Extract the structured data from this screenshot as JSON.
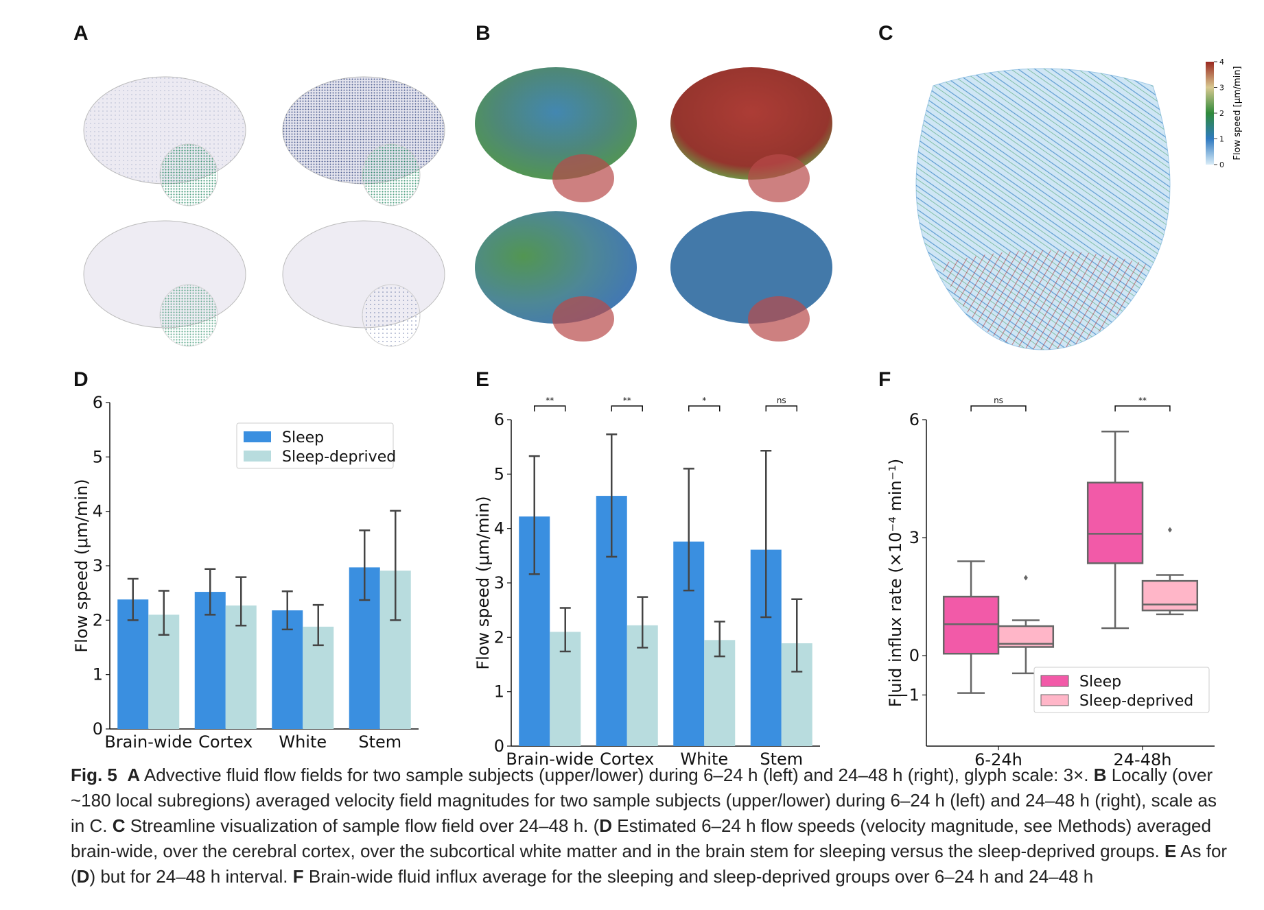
{
  "panels": {
    "A": "A",
    "B": "B",
    "C": "C",
    "D": "D",
    "E": "E",
    "F": "F"
  },
  "colorbar": {
    "label": "Flow speed  [μm/min]",
    "ticks": [
      "0",
      "1",
      "2",
      "3",
      "4"
    ]
  },
  "legend_bar": {
    "sleep": "Sleep",
    "deprived": "Sleep-deprived"
  },
  "colors": {
    "sleep": "#3a8fe0",
    "deprived": "#b8dcde",
    "box_sleep": "#f25aa8",
    "box_deprived": "#ffb6c8",
    "error": "#444444"
  },
  "chart_data": [
    {
      "id": "D",
      "type": "bar",
      "categories": [
        "Brain-wide",
        "Cortex",
        "White",
        "Stem"
      ],
      "ylabel": "Flow speed (μm/min)",
      "ylim": [
        0,
        6
      ],
      "yticks": [
        0,
        1,
        2,
        3,
        4,
        5,
        6
      ],
      "series": [
        {
          "name": "Sleep",
          "values": [
            2.38,
            2.52,
            2.18,
            2.97
          ],
          "err_low": [
            2.0,
            2.1,
            1.83,
            2.37
          ],
          "err_high": [
            2.76,
            2.94,
            2.53,
            3.65
          ]
        },
        {
          "name": "Sleep-deprived",
          "values": [
            2.1,
            2.27,
            1.88,
            2.91
          ],
          "err_low": [
            1.73,
            1.9,
            1.54,
            2.0
          ],
          "err_high": [
            2.54,
            2.79,
            2.28,
            4.01
          ]
        }
      ],
      "legend": "top-right"
    },
    {
      "id": "E",
      "type": "bar",
      "categories": [
        "Brain-wide",
        "Cortex",
        "White",
        "Stem"
      ],
      "ylabel": "Flow speed (μm/min)",
      "ylim": [
        0,
        6
      ],
      "yticks": [
        0,
        1,
        2,
        3,
        4,
        5,
        6
      ],
      "series": [
        {
          "name": "Sleep",
          "values": [
            4.22,
            4.6,
            3.76,
            3.61
          ],
          "err_low": [
            3.16,
            3.48,
            2.86,
            2.37
          ],
          "err_high": [
            5.33,
            5.73,
            5.1,
            5.43
          ]
        },
        {
          "name": "Sleep-deprived",
          "values": [
            2.1,
            2.22,
            1.95,
            1.89
          ],
          "err_low": [
            1.74,
            1.81,
            1.65,
            1.37
          ],
          "err_high": [
            2.54,
            2.74,
            2.29,
            2.7
          ]
        }
      ],
      "significance": [
        "**",
        "**",
        "*",
        "ns"
      ]
    },
    {
      "id": "F",
      "type": "box",
      "categories": [
        "6-24h",
        "24-48h"
      ],
      "ylabel": "Fluid influx rate (×10⁻⁴ min⁻¹)",
      "ylim": [
        -2.3,
        6
      ],
      "yticks": [
        -1,
        0,
        3,
        6
      ],
      "ytick_labels": [
        "−1",
        "0",
        "3",
        "6"
      ],
      "series": [
        {
          "name": "Sleep",
          "boxes": [
            {
              "min": -0.95,
              "q1": 0.05,
              "median": 0.8,
              "q3": 1.5,
              "max": 2.4,
              "outliers": []
            },
            {
              "min": 0.7,
              "q1": 2.35,
              "median": 3.1,
              "q3": 4.4,
              "max": 5.7,
              "outliers": []
            }
          ]
        },
        {
          "name": "Sleep-deprived",
          "boxes": [
            {
              "min": -0.45,
              "q1": 0.22,
              "median": 0.3,
              "q3": 0.75,
              "max": 0.9,
              "outliers": [
                1.98
              ]
            },
            {
              "min": 1.05,
              "q1": 1.15,
              "median": 1.3,
              "q3": 1.9,
              "max": 2.05,
              "outliers": [
                3.2
              ]
            }
          ]
        }
      ],
      "significance": [
        "ns",
        "**"
      ],
      "legend": "bottom-right"
    }
  ],
  "caption": {
    "fig": "Fig. 5",
    "parts": [
      {
        "b": "A",
        "t": " Advective fluid flow fields for two sample subjects (upper/lower) during 6–24 h (left) and 24–48 h (right), glyph scale: 3×. "
      },
      {
        "b": "B",
        "t": " Locally (over ~180 local subregions) averaged velocity field magnitudes for two sample subjects (upper/lower) during 6–24 h (left) and 24–48 h (right), scale as in C. "
      },
      {
        "b": "C",
        "t": " Streamline visualization of sample flow field over 24–48 h. ("
      },
      {
        "b": "D",
        "t": " Estimated 6–24 h flow speeds (velocity magnitude, see Methods) averaged brain-wide, over the cerebral cortex, over the subcortical white matter and in the brain stem for sleeping versus the sleep-deprived groups. "
      },
      {
        "b": "E",
        "t": " As for ("
      },
      {
        "b": "D",
        "t": ") but for 24–48 h interval. "
      },
      {
        "b": "F",
        "t": " Brain-wide fluid influx average for the sleeping and sleep-deprived groups over 6–24 h and 24–48 h"
      }
    ]
  }
}
